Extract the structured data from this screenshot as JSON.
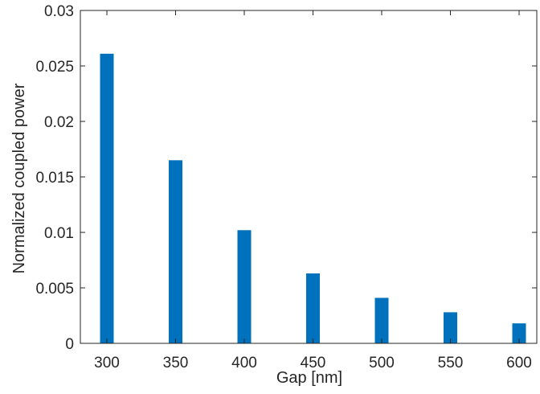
{
  "chart_data": {
    "type": "bar",
    "title": "",
    "xlabel": "Gap [nm]",
    "ylabel": "Normalized coupled power",
    "categories": [
      "300",
      "350",
      "400",
      "450",
      "500",
      "550",
      "600"
    ],
    "values": [
      0.0261,
      0.0165,
      0.0102,
      0.0063,
      0.0041,
      0.0028,
      0.0018
    ],
    "ylim": [
      0,
      0.03
    ],
    "yticks": [
      "0",
      "0.005",
      "0.01",
      "0.015",
      "0.02",
      "0.025",
      "0.03"
    ],
    "grid": false,
    "legend": "none",
    "bar_color": "#0072BD",
    "axis_color": "#262626"
  }
}
